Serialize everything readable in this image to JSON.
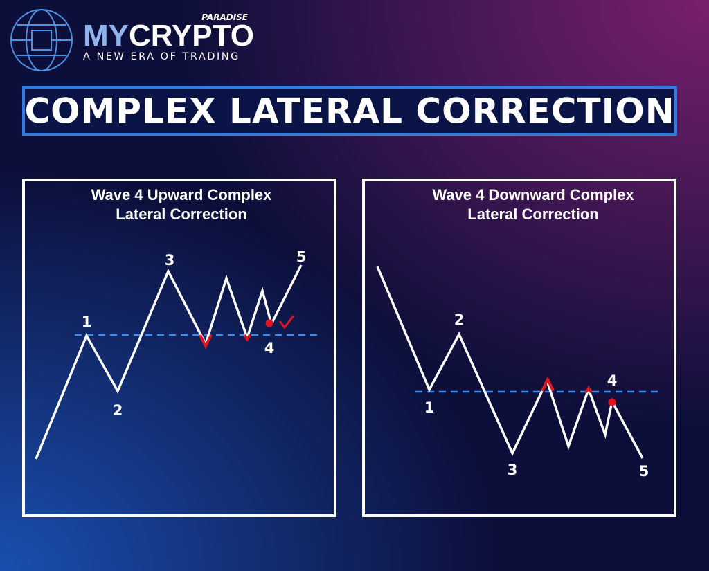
{
  "brand": {
    "tag": "PARADISE",
    "name_prefix": "MY",
    "name": "CRYPTO",
    "tagline": "A NEW ERA OF TRADING"
  },
  "title": "COMPLEX LATERAL CORRECTION",
  "panels": [
    {
      "title_lines": [
        "Wave 4 Upward Complex",
        "Lateral Correction"
      ],
      "labels": [
        "1",
        "2",
        "3",
        "4",
        "5"
      ]
    },
    {
      "title_lines": [
        "Wave 4 Downward Complex",
        "Lateral Correction"
      ],
      "labels": [
        "1",
        "2",
        "3",
        "4",
        "5"
      ]
    }
  ]
}
